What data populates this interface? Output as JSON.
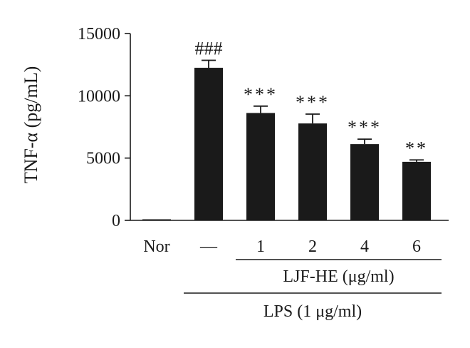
{
  "chart_data": {
    "type": "bar",
    "categories": [
      "Nor",
      "—",
      "1",
      "2",
      "4",
      "6"
    ],
    "values": [
      30,
      12250,
      8620,
      7780,
      6120,
      4700
    ],
    "errors": [
      0,
      600,
      550,
      750,
      400,
      150
    ],
    "annotations": [
      "",
      "###",
      "***",
      "***",
      "***",
      "**"
    ],
    "ylabel": "TNF-α (pg/mL)",
    "ylim": [
      0,
      15000
    ],
    "yticks": [
      "0",
      "5000",
      "10000",
      "15000"
    ],
    "groups": [
      {
        "label": "LJF-HE (μg/ml)",
        "from": 2,
        "to": 5
      },
      {
        "label": "LPS (1 μg/ml)",
        "from": 1,
        "to": 5
      }
    ],
    "bar_color": "#1a1a1a",
    "grid": false,
    "legend": "none"
  }
}
